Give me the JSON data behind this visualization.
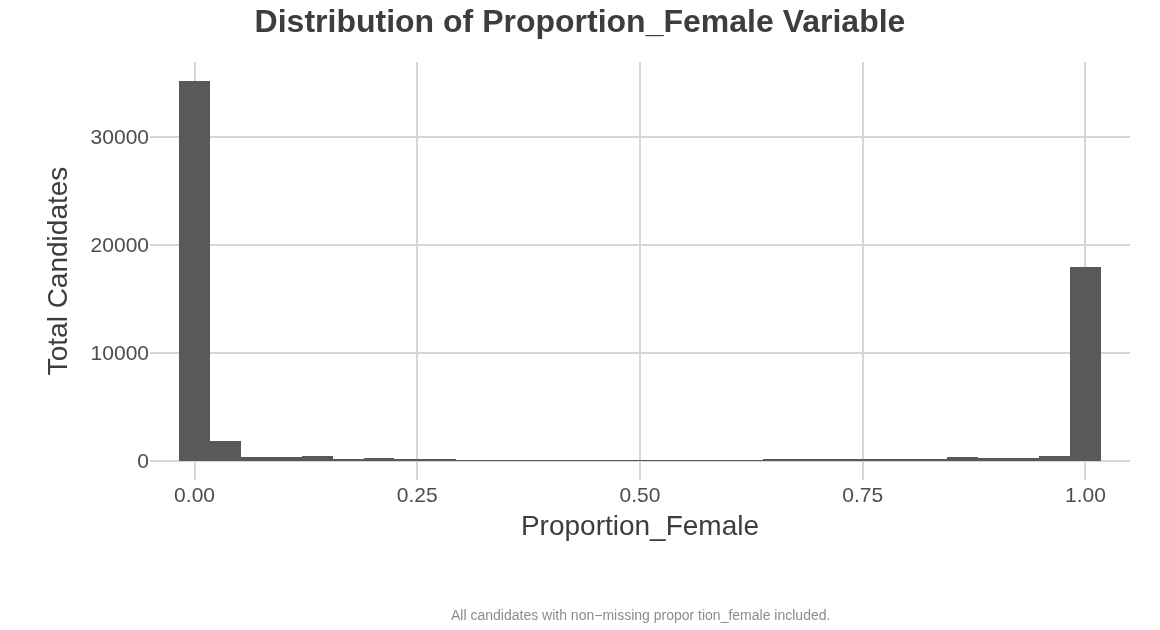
{
  "chart_data": {
    "type": "histogram",
    "title": "Distribution of Proportion_Female Variable",
    "xlabel": "Proportion_Female",
    "ylabel": "Total Candidates",
    "annotations": [
      "All candidates with non−missing propor tion_female included."
    ],
    "bins": [
      -0.0172,
      0.0172,
      0.0517,
      0.0862,
      0.1207,
      0.1552,
      0.1897,
      0.2241,
      0.2586,
      0.2931,
      0.3276,
      0.3621,
      0.3966,
      0.431,
      0.4655,
      0.5,
      0.5345,
      0.569,
      0.6034,
      0.6379,
      0.6724,
      0.7069,
      0.7414,
      0.7759,
      0.8103,
      0.8448,
      0.8793,
      0.9138,
      0.9483,
      0.9828,
      1.0172
    ],
    "values": [
      35100,
      1840,
      300,
      300,
      400,
      150,
      200,
      80,
      60,
      50,
      50,
      40,
      40,
      40,
      40,
      50,
      40,
      30,
      50,
      100,
      60,
      100,
      80,
      100,
      100,
      300,
      200,
      200,
      400,
      17900
    ],
    "color": "#595959",
    "xlim": [
      -0.05,
      1.05
    ],
    "xticks": [
      {
        "value": 0,
        "label": "0.00"
      },
      {
        "value": 0.25,
        "label": "0.25"
      },
      {
        "value": 0.5,
        "label": "0.50"
      },
      {
        "value": 0.75,
        "label": "0.75"
      },
      {
        "value": 1,
        "label": "1.00"
      }
    ],
    "ylim": [
      -1800,
      36900
    ],
    "yticks": [
      0,
      10000,
      20000,
      30000
    ],
    "grid": true
  }
}
